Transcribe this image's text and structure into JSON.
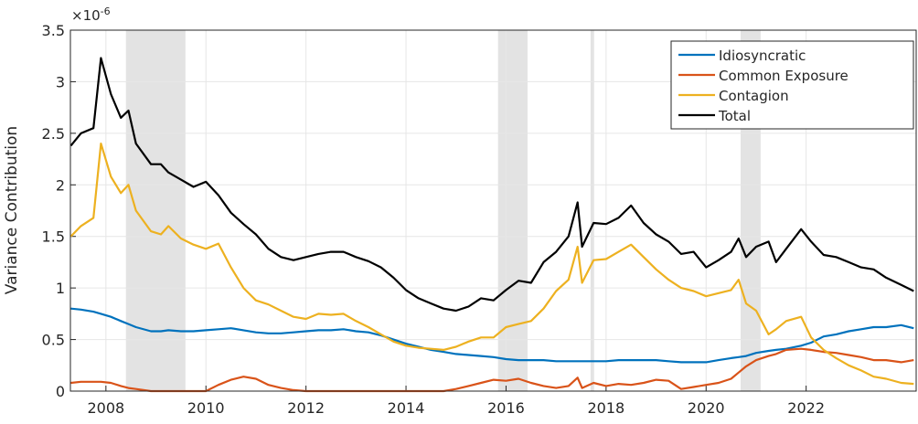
{
  "chart_data": {
    "type": "line",
    "y_label": "Variance Contribution",
    "y_multiplier": {
      "base": "×10",
      "exponent": "-6"
    },
    "xlim": [
      2007.29,
      2024.2
    ],
    "ylim": [
      0,
      3.5
    ],
    "xticks": [
      2008,
      2010,
      2012,
      2014,
      2016,
      2018,
      2020,
      2022
    ],
    "yticks": [
      0,
      0.5,
      1,
      1.5,
      2,
      2.5,
      3,
      3.5
    ],
    "grid": true,
    "legend": "upper right",
    "shaded_x": [
      [
        2008.4,
        2009.59
      ],
      [
        2015.84,
        2016.43
      ],
      [
        2017.69,
        2017.76
      ],
      [
        2020.69,
        2021.09
      ]
    ],
    "shade_color": "#e3e3e3",
    "x": [
      2007.3,
      2007.5,
      2007.75,
      2007.9,
      2008.1,
      2008.3,
      2008.45,
      2008.6,
      2008.9,
      2009.1,
      2009.25,
      2009.5,
      2009.75,
      2010,
      2010.25,
      2010.5,
      2010.75,
      2011,
      2011.25,
      2011.5,
      2011.75,
      2012,
      2012.25,
      2012.5,
      2012.75,
      2013,
      2013.25,
      2013.5,
      2013.75,
      2014,
      2014.25,
      2014.5,
      2014.75,
      2015,
      2015.25,
      2015.5,
      2015.75,
      2016,
      2016.25,
      2016.5,
      2016.75,
      2017,
      2017.25,
      2017.43,
      2017.52,
      2017.75,
      2018,
      2018.25,
      2018.5,
      2018.75,
      2019,
      2019.25,
      2019.5,
      2019.75,
      2020,
      2020.25,
      2020.5,
      2020.65,
      2020.8,
      2021,
      2021.25,
      2021.4,
      2021.6,
      2021.9,
      2022.1,
      2022.35,
      2022.6,
      2022.85,
      2023.1,
      2023.35,
      2023.6,
      2023.9,
      2024.15
    ],
    "series": [
      {
        "name": "Idiosyncratic",
        "color": "#0072bd",
        "values": [
          0.8,
          0.79,
          0.77,
          0.75,
          0.72,
          0.68,
          0.65,
          0.62,
          0.58,
          0.58,
          0.59,
          0.58,
          0.58,
          0.59,
          0.6,
          0.61,
          0.59,
          0.57,
          0.56,
          0.56,
          0.57,
          0.58,
          0.59,
          0.59,
          0.6,
          0.58,
          0.57,
          0.54,
          0.5,
          0.46,
          0.43,
          0.4,
          0.38,
          0.36,
          0.35,
          0.34,
          0.33,
          0.31,
          0.3,
          0.3,
          0.3,
          0.29,
          0.29,
          0.29,
          0.29,
          0.29,
          0.29,
          0.3,
          0.3,
          0.3,
          0.3,
          0.29,
          0.28,
          0.28,
          0.28,
          0.3,
          0.32,
          0.33,
          0.34,
          0.37,
          0.39,
          0.4,
          0.41,
          0.44,
          0.47,
          0.53,
          0.55,
          0.58,
          0.6,
          0.62,
          0.62,
          0.64,
          0.61
        ]
      },
      {
        "name": "Common Exposure",
        "color": "#d95319",
        "values": [
          0.08,
          0.09,
          0.09,
          0.09,
          0.08,
          0.05,
          0.03,
          0.02,
          0,
          0,
          0,
          0,
          0,
          0,
          0.06,
          0.11,
          0.14,
          0.12,
          0.06,
          0.03,
          0.01,
          0,
          0,
          0,
          0,
          0,
          0,
          0,
          0,
          0,
          0,
          0,
          0,
          0.02,
          0.05,
          0.08,
          0.11,
          0.1,
          0.12,
          0.08,
          0.05,
          0.03,
          0.05,
          0.13,
          0.03,
          0.08,
          0.05,
          0.07,
          0.06,
          0.08,
          0.11,
          0.1,
          0.02,
          0.04,
          0.06,
          0.08,
          0.12,
          0.18,
          0.24,
          0.3,
          0.34,
          0.36,
          0.4,
          0.41,
          0.4,
          0.38,
          0.37,
          0.35,
          0.33,
          0.3,
          0.3,
          0.28,
          0.3
        ]
      },
      {
        "name": "Contagion",
        "color": "#edb120",
        "values": [
          1.5,
          1.6,
          1.68,
          2.4,
          2.08,
          1.92,
          2.0,
          1.75,
          1.55,
          1.52,
          1.6,
          1.48,
          1.42,
          1.38,
          1.43,
          1.2,
          1.0,
          0.88,
          0.84,
          0.78,
          0.72,
          0.7,
          0.75,
          0.74,
          0.75,
          0.68,
          0.62,
          0.55,
          0.48,
          0.44,
          0.42,
          0.41,
          0.4,
          0.43,
          0.48,
          0.52,
          0.52,
          0.62,
          0.65,
          0.68,
          0.8,
          0.97,
          1.08,
          1.4,
          1.05,
          1.27,
          1.28,
          1.35,
          1.42,
          1.3,
          1.18,
          1.08,
          1.0,
          0.97,
          0.92,
          0.95,
          0.98,
          1.08,
          0.85,
          0.78,
          0.55,
          0.6,
          0.68,
          0.72,
          0.52,
          0.4,
          0.32,
          0.25,
          0.2,
          0.14,
          0.12,
          0.08,
          0.07
        ]
      },
      {
        "name": "Total",
        "color": "#000000",
        "values": [
          2.38,
          2.5,
          2.55,
          3.23,
          2.88,
          2.65,
          2.72,
          2.4,
          2.2,
          2.2,
          2.12,
          2.05,
          1.98,
          2.03,
          1.9,
          1.73,
          1.62,
          1.52,
          1.38,
          1.3,
          1.27,
          1.3,
          1.33,
          1.35,
          1.35,
          1.3,
          1.26,
          1.2,
          1.1,
          0.98,
          0.9,
          0.85,
          0.8,
          0.78,
          0.82,
          0.9,
          0.88,
          0.98,
          1.07,
          1.05,
          1.25,
          1.35,
          1.5,
          1.83,
          1.4,
          1.63,
          1.62,
          1.68,
          1.8,
          1.63,
          1.52,
          1.45,
          1.33,
          1.35,
          1.2,
          1.27,
          1.35,
          1.48,
          1.3,
          1.4,
          1.45,
          1.25,
          1.38,
          1.57,
          1.45,
          1.32,
          1.3,
          1.25,
          1.2,
          1.18,
          1.1,
          1.03,
          0.97
        ]
      }
    ]
  }
}
